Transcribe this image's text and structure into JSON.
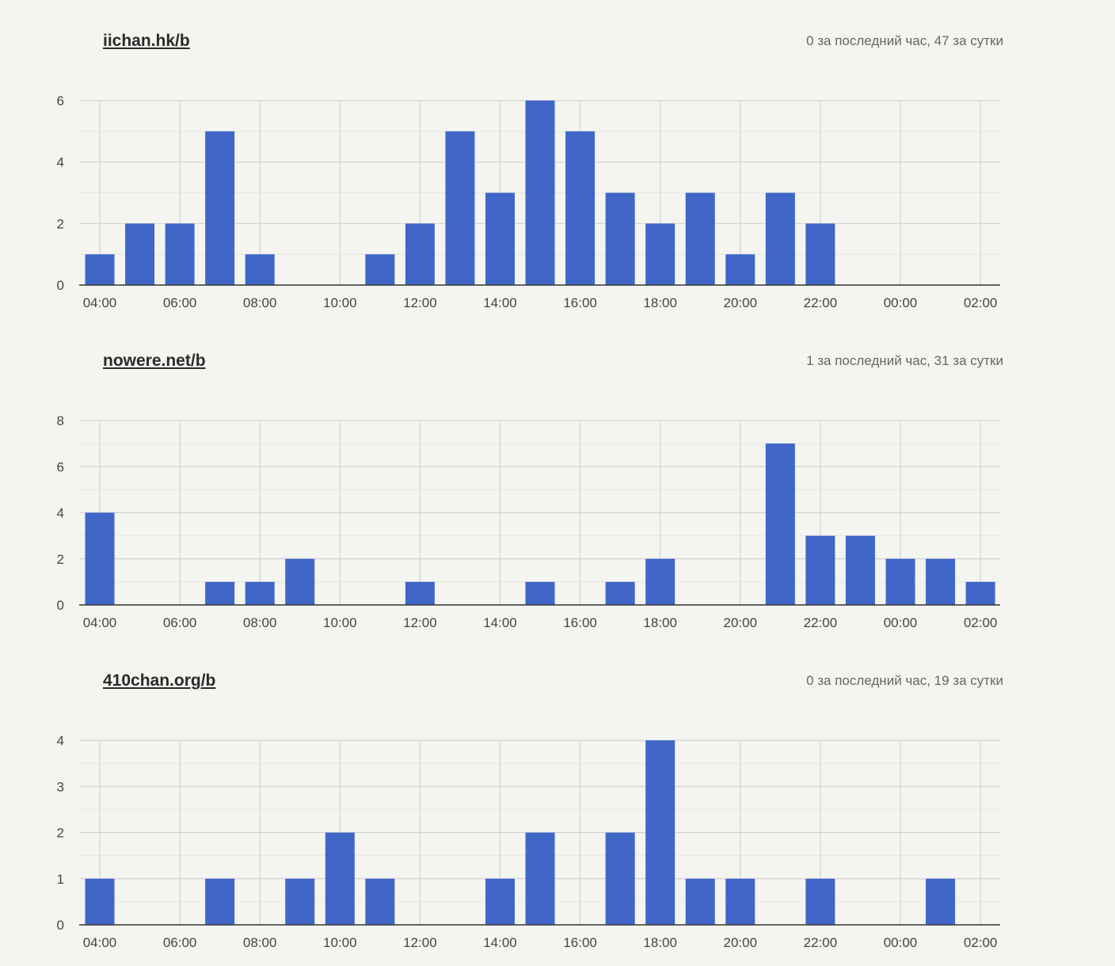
{
  "boards": [
    {
      "name": "iichan.hk/b",
      "stats": "0 за последний час, 47 за сутки"
    },
    {
      "name": "nowere.net/b",
      "stats": "1 за последний час, 31 за сутки"
    },
    {
      "name": "410chan.org/b",
      "stats": "0 за последний час, 19 за сутки"
    }
  ],
  "colors": {
    "bar": "#4066c8",
    "background": "#f4f4f0"
  },
  "chart_data": [
    {
      "type": "bar",
      "title": "",
      "xlabel": "",
      "ylabel": "",
      "categories": [
        "04:00",
        "05:00",
        "06:00",
        "07:00",
        "08:00",
        "09:00",
        "10:00",
        "11:00",
        "12:00",
        "13:00",
        "14:00",
        "15:00",
        "16:00",
        "17:00",
        "18:00",
        "19:00",
        "20:00",
        "21:00",
        "22:00",
        "23:00",
        "00:00",
        "01:00",
        "02:00"
      ],
      "tick_labels": [
        "04:00",
        "06:00",
        "08:00",
        "10:00",
        "12:00",
        "14:00",
        "16:00",
        "18:00",
        "20:00",
        "22:00",
        "00:00",
        "02:00"
      ],
      "values": [
        1,
        2,
        2,
        5,
        1,
        0,
        0,
        1,
        2,
        5,
        3,
        6,
        5,
        3,
        2,
        3,
        1,
        3,
        2,
        0,
        0,
        0,
        0
      ],
      "ylim": [
        0,
        6
      ],
      "yticks": [
        0,
        2,
        4,
        6
      ],
      "grid": true
    },
    {
      "type": "bar",
      "title": "",
      "xlabel": "",
      "ylabel": "",
      "categories": [
        "04:00",
        "05:00",
        "06:00",
        "07:00",
        "08:00",
        "09:00",
        "10:00",
        "11:00",
        "12:00",
        "13:00",
        "14:00",
        "15:00",
        "16:00",
        "17:00",
        "18:00",
        "19:00",
        "20:00",
        "21:00",
        "22:00",
        "23:00",
        "00:00",
        "01:00",
        "02:00"
      ],
      "tick_labels": [
        "04:00",
        "06:00",
        "08:00",
        "10:00",
        "12:00",
        "14:00",
        "16:00",
        "18:00",
        "20:00",
        "22:00",
        "00:00",
        "02:00"
      ],
      "values": [
        4,
        0,
        0,
        1,
        1,
        2,
        0,
        0,
        1,
        0,
        0,
        1,
        0,
        1,
        2,
        0,
        0,
        7,
        3,
        3,
        2,
        2,
        1
      ],
      "ylim": [
        0,
        8
      ],
      "yticks": [
        0,
        2,
        4,
        6,
        8
      ],
      "grid": true
    },
    {
      "type": "bar",
      "title": "",
      "xlabel": "",
      "ylabel": "",
      "categories": [
        "04:00",
        "05:00",
        "06:00",
        "07:00",
        "08:00",
        "09:00",
        "10:00",
        "11:00",
        "12:00",
        "13:00",
        "14:00",
        "15:00",
        "16:00",
        "17:00",
        "18:00",
        "19:00",
        "20:00",
        "21:00",
        "22:00",
        "23:00",
        "00:00",
        "01:00",
        "02:00"
      ],
      "tick_labels": [
        "04:00",
        "06:00",
        "08:00",
        "10:00",
        "12:00",
        "14:00",
        "16:00",
        "18:00",
        "20:00",
        "22:00",
        "00:00",
        "02:00"
      ],
      "values": [
        1,
        0,
        0,
        1,
        0,
        1,
        2,
        1,
        0,
        0,
        1,
        2,
        0,
        2,
        4,
        1,
        1,
        0,
        1,
        0,
        0,
        1,
        0
      ],
      "ylim": [
        0,
        4
      ],
      "yticks": [
        0,
        1,
        2,
        3,
        4
      ],
      "grid": true
    }
  ]
}
